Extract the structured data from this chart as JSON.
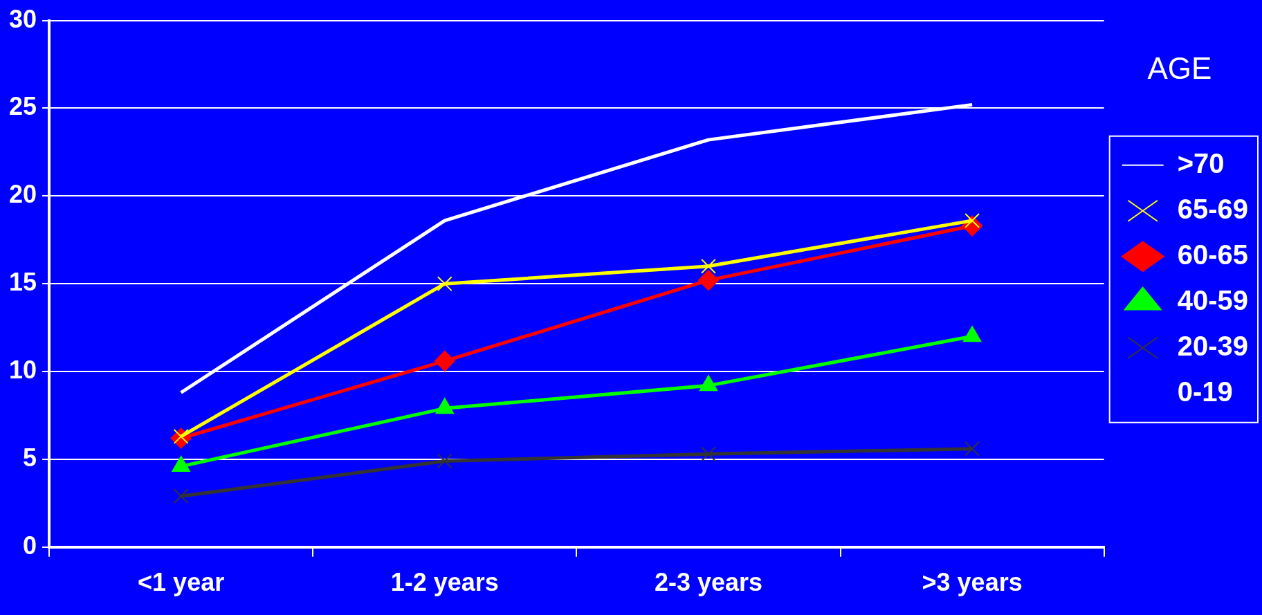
{
  "chart_data": {
    "type": "line",
    "categories": [
      "<1 year",
      "1-2 years",
      "2-3 years",
      ">3 years"
    ],
    "ylim": [
      0,
      30
    ],
    "yticks": [
      0,
      5,
      10,
      15,
      20,
      25,
      30
    ],
    "grid": "y",
    "legend": "right",
    "legend_title": "AGE",
    "line_style": "solid",
    "series": [
      {
        "name": ">70",
        "color": "#ffffff",
        "marker": "none",
        "values": [
          8.8,
          18.6,
          23.2,
          25.2
        ]
      },
      {
        "name": "65-69",
        "color": "#ffff00",
        "marker": "cross",
        "values": [
          6.3,
          15.0,
          16.0,
          18.6
        ]
      },
      {
        "name": "60-65",
        "color": "#ff0000",
        "marker": "diamond",
        "values": [
          6.2,
          10.6,
          15.2,
          18.3
        ]
      },
      {
        "name": "40-59",
        "color": "#00ff00",
        "marker": "triangle",
        "values": [
          4.6,
          7.9,
          9.2,
          12.0
        ]
      },
      {
        "name": "20-39",
        "color": "#333333",
        "marker": "cross",
        "values": [
          2.9,
          4.9,
          5.3,
          5.6
        ]
      },
      {
        "name": "0-19",
        "marker": "none",
        "values": [
          null,
          null,
          null,
          null
        ]
      }
    ]
  }
}
